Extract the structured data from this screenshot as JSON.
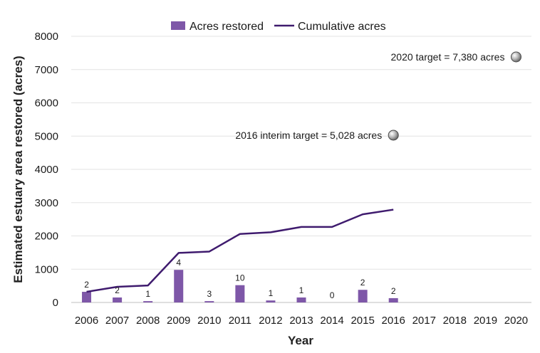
{
  "chart_data": {
    "type": "bar",
    "categories": [
      "2006",
      "2007",
      "2008",
      "2009",
      "2010",
      "2011",
      "2012",
      "2013",
      "2014",
      "2015",
      "2016",
      "2017",
      "2018",
      "2019",
      "2020"
    ],
    "series": [
      {
        "name": "Acres restored",
        "type": "bar",
        "values": [
          320,
          150,
          40,
          980,
          40,
          520,
          60,
          150,
          0,
          380,
          130,
          null,
          null,
          null,
          null
        ],
        "data_labels": [
          "2",
          "2",
          "1",
          "4",
          "3",
          "10",
          "1",
          "1",
          "0",
          "2",
          "2",
          "",
          "",
          "",
          ""
        ],
        "color": "#7e57a8"
      },
      {
        "name": "Cumulative acres",
        "type": "line",
        "values": [
          320,
          470,
          510,
          1490,
          1530,
          2060,
          2110,
          2270,
          2270,
          2650,
          2790,
          null,
          null,
          null,
          null
        ],
        "color": "#3f1b6e"
      }
    ],
    "targets": [
      {
        "label": "2016 interim target = 5,028 acres",
        "x": "2016",
        "y": 5028
      },
      {
        "label": "2020 target = 7,380 acres",
        "x": "2020",
        "y": 7380
      }
    ],
    "xlabel": "Year",
    "ylabel": "Estimated estuary area restored (acres)",
    "ylim": [
      0,
      8000
    ],
    "yticks": [
      0,
      1000,
      2000,
      3000,
      4000,
      5000,
      6000,
      7000,
      8000
    ],
    "grid": true,
    "legend_position": "top-center"
  }
}
